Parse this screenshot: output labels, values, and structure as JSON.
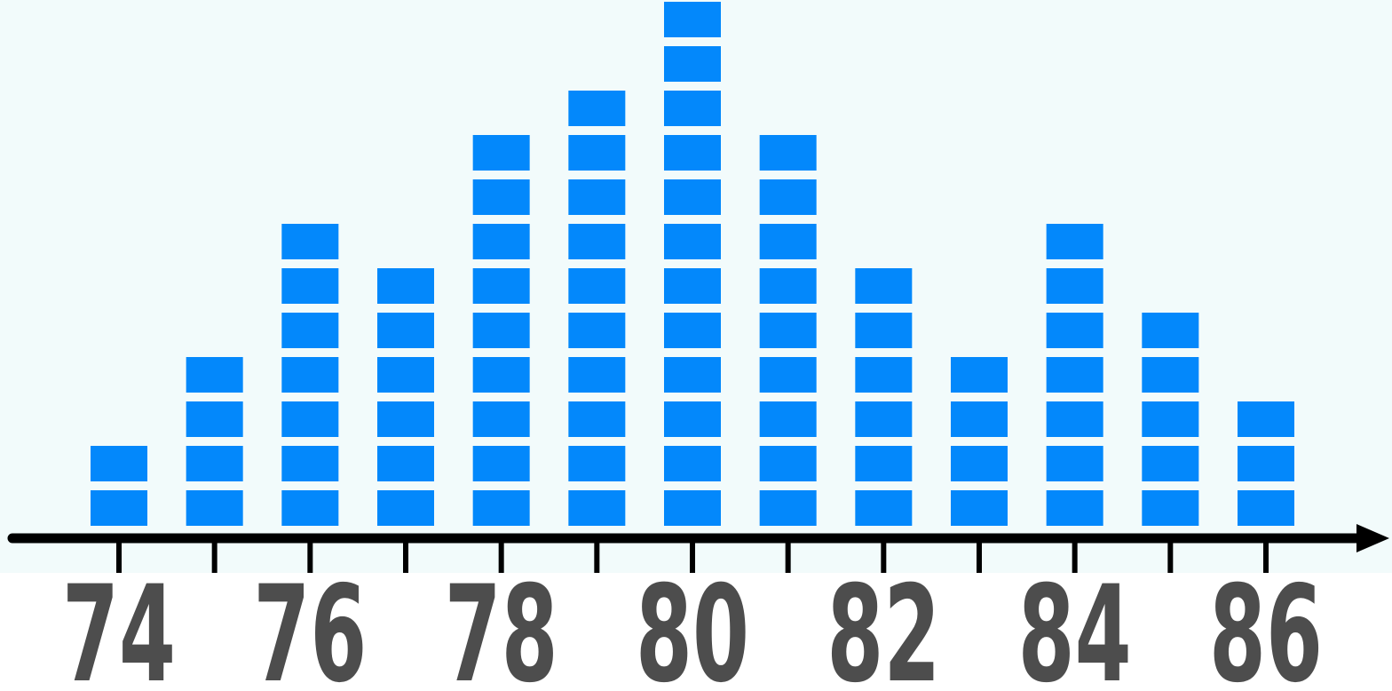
{
  "colors": {
    "background": "#f2fbfb",
    "marker": "#0388fb",
    "axis": "#000000",
    "tick_label": "#4d4d4d"
  },
  "chart_data": {
    "type": "bar",
    "style": "stacked-block dot plot",
    "categories": [
      74,
      75,
      76,
      77,
      78,
      79,
      80,
      81,
      82,
      83,
      84,
      85,
      86
    ],
    "values": [
      2,
      4,
      7,
      6,
      9,
      10,
      12,
      9,
      6,
      4,
      7,
      5,
      3
    ],
    "tick_labels": [
      "74",
      "76",
      "78",
      "80",
      "82",
      "84",
      "86"
    ],
    "xlim": [
      74,
      86
    ],
    "ylim": [
      0,
      12
    ],
    "title": "",
    "xlabel": "",
    "ylabel": "",
    "grid": false,
    "legend": "none"
  }
}
